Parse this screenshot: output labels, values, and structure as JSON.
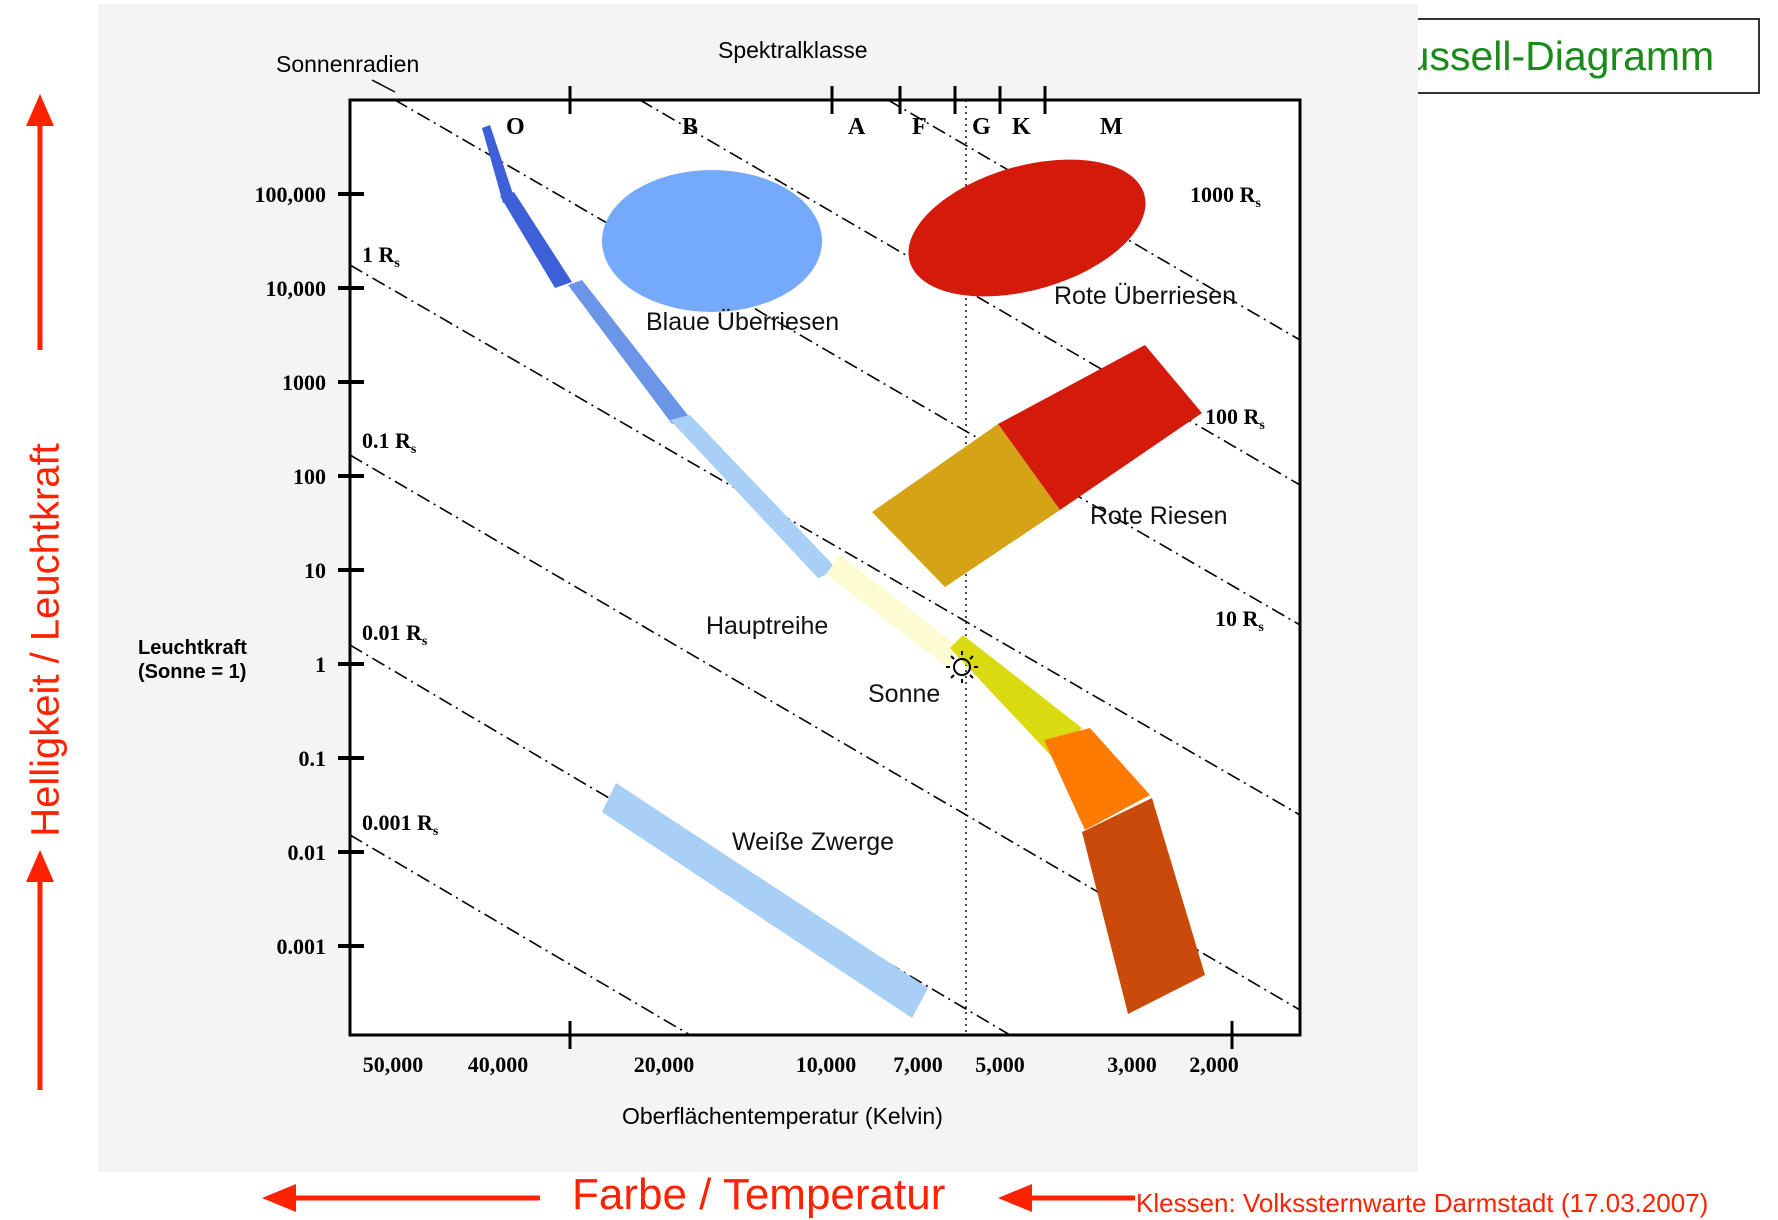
{
  "title": "Das Hertzsprung-Russell-Diagramm",
  "side_label": "Helligkeit / Leuchtkraft",
  "bottom_label": "Farbe / Temperatur",
  "source": "Klessen: Volkssternwarte Darmstadt (17.03.2007)",
  "diagram": {
    "top_axis_title": "Spektralklasse",
    "radius_axis_title": "Sonnenradien",
    "x_axis_title": "Oberflächentemperatur (Kelvin)",
    "y_axis_title_line1": "Leuchtkraft",
    "y_axis_title_line2": "(Sonne = 1)",
    "spectral_classes": [
      "O",
      "B",
      "A",
      "F",
      "G",
      "K",
      "M"
    ],
    "y_ticks": [
      "100,000",
      "10,000",
      "1000",
      "100",
      "10",
      "1",
      "0.1",
      "0.01",
      "0.001"
    ],
    "x_ticks": [
      "50,000",
      "40,000",
      "20,000",
      "10,000",
      "7,000",
      "5,000",
      "3,000",
      "2,000"
    ],
    "radius_lines": [
      "0.001 R",
      "0.01 R",
      "0.1 R",
      "1 R",
      "10 R",
      "100 R",
      "1000 R"
    ],
    "radius_subscript": "s",
    "regions": {
      "blue_supergiants": "Blaue Überriesen",
      "red_supergiants": "Rote Überriesen",
      "red_giants": "Rote Riesen",
      "main_sequence": "Hauptreihe",
      "sun": "Sonne",
      "white_dwarfs": "Weiße Zwerge"
    },
    "colors": {
      "blue_supergiants": "#74a9fb",
      "red_supergiants": "#d41a0a",
      "red_giants_red": "#d41a0a",
      "red_giants_yellow": "#d4a316",
      "ms_deep_blue": "#3d5fd8",
      "ms_mid_blue": "#6b95e6",
      "ms_light_blue": "#a8cff5",
      "ms_pale_yellow": "#fdfbd2",
      "ms_yellow": "#dada10",
      "ms_orange": "#ff7a00",
      "ms_dark_orange": "#c94a0a",
      "white_dwarfs": "#a8cff5",
      "accent_red": "#ff2200",
      "title_green": "#1a8a1a"
    }
  }
}
